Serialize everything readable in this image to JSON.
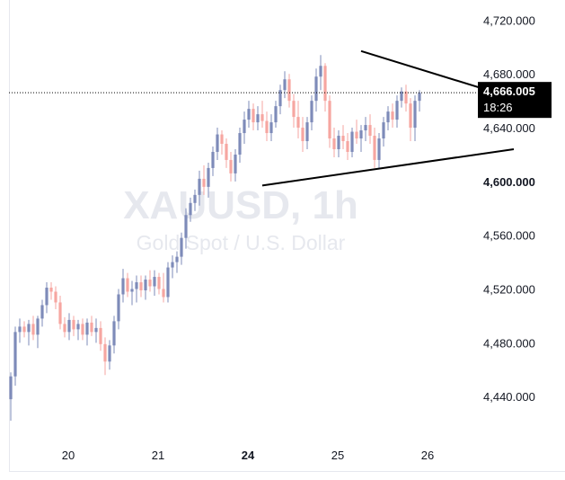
{
  "chart_data": {
    "type": "candlestick",
    "symbol_watermark": "XAUUSD, 1h",
    "description_watermark": "Gold Spot / U.S. Dollar",
    "ylim": [
      4410,
      4735
    ],
    "y_ticks": [
      "4,720.000",
      "4,680.000",
      "4,640.000",
      "4,600.000",
      "4,560.000",
      "4,520.000",
      "4,480.000",
      "4,440.000"
    ],
    "y_tick_values": [
      4720,
      4680,
      4640,
      4600,
      4560,
      4520,
      4480,
      4440
    ],
    "bold_y_tick": "4,600.000",
    "x_ticks": [
      "20",
      "21",
      "24",
      "25",
      "26"
    ],
    "x_tick_bar_index": [
      6,
      26,
      46,
      66,
      86
    ],
    "bold_x_tick": "24",
    "current_price": "4,666.005",
    "current_price_value": 4666.005,
    "countdown": "18:26",
    "colors": {
      "up": "#7e8bb9",
      "down": "#f6a6a1",
      "badge": "#000000",
      "trendline": "#000000",
      "priceline": "#000000"
    },
    "candles": [
      [
        4438,
        4458,
        4422,
        4455
      ],
      [
        4455,
        4492,
        4448,
        4488
      ],
      [
        4488,
        4498,
        4480,
        4492
      ],
      [
        4492,
        4496,
        4484,
        4488
      ],
      [
        4488,
        4497,
        4478,
        4494
      ],
      [
        4494,
        4500,
        4482,
        4486
      ],
      [
        4486,
        4500,
        4476,
        4498
      ],
      [
        4498,
        4512,
        4492,
        4508
      ],
      [
        4508,
        4525,
        4502,
        4521
      ],
      [
        4521,
        4525,
        4512,
        4518
      ],
      [
        4518,
        4522,
        4505,
        4510
      ],
      [
        4510,
        4515,
        4490,
        4494
      ],
      [
        4494,
        4499,
        4484,
        4488
      ],
      [
        4488,
        4502,
        4482,
        4497
      ],
      [
        4497,
        4500,
        4485,
        4490
      ],
      [
        4490,
        4497,
        4482,
        4494
      ],
      [
        4494,
        4498,
        4482,
        4486
      ],
      [
        4486,
        4498,
        4478,
        4495
      ],
      [
        4495,
        4500,
        4485,
        4488
      ],
      [
        4488,
        4498,
        4480,
        4491
      ],
      [
        4491,
        4496,
        4474,
        4479
      ],
      [
        4479,
        4484,
        4456,
        4466
      ],
      [
        4466,
        4482,
        4460,
        4478
      ],
      [
        4478,
        4500,
        4472,
        4496
      ],
      [
        4496,
        4520,
        4490,
        4516
      ],
      [
        4516,
        4535,
        4510,
        4528
      ],
      [
        4528,
        4532,
        4514,
        4518
      ],
      [
        4518,
        4526,
        4508,
        4520
      ],
      [
        4520,
        4530,
        4510,
        4525
      ],
      [
        4525,
        4530,
        4514,
        4519
      ],
      [
        4519,
        4530,
        4512,
        4527
      ],
      [
        4527,
        4534,
        4518,
        4522
      ],
      [
        4522,
        4534,
        4515,
        4529
      ],
      [
        4529,
        4532,
        4516,
        4520
      ],
      [
        4520,
        4532,
        4510,
        4514
      ],
      [
        4514,
        4540,
        4510,
        4536
      ],
      [
        4536,
        4545,
        4528,
        4540
      ],
      [
        4540,
        4548,
        4532,
        4544
      ],
      [
        4544,
        4562,
        4538,
        4558
      ],
      [
        4558,
        4580,
        4550,
        4575
      ],
      [
        4575,
        4588,
        4570,
        4584
      ],
      [
        4584,
        4594,
        4578,
        4590
      ],
      [
        4590,
        4608,
        4582,
        4602
      ],
      [
        4602,
        4612,
        4590,
        4596
      ],
      [
        4596,
        4614,
        4588,
        4610
      ],
      [
        4610,
        4626,
        4604,
        4622
      ],
      [
        4622,
        4640,
        4616,
        4635
      ],
      [
        4635,
        4638,
        4620,
        4628
      ],
      [
        4628,
        4632,
        4610,
        4616
      ],
      [
        4616,
        4622,
        4600,
        4606
      ],
      [
        4606,
        4624,
        4600,
        4620
      ],
      [
        4620,
        4640,
        4614,
        4636
      ],
      [
        4636,
        4652,
        4628,
        4646
      ],
      [
        4646,
        4660,
        4640,
        4654
      ],
      [
        4654,
        4658,
        4638,
        4644
      ],
      [
        4644,
        4656,
        4638,
        4650
      ],
      [
        4650,
        4660,
        4640,
        4645
      ],
      [
        4645,
        4652,
        4630,
        4636
      ],
      [
        4636,
        4650,
        4630,
        4644
      ],
      [
        4644,
        4660,
        4640,
        4656
      ],
      [
        4656,
        4672,
        4650,
        4668
      ],
      [
        4668,
        4682,
        4662,
        4676
      ],
      [
        4676,
        4680,
        4655,
        4660
      ],
      [
        4660,
        4665,
        4640,
        4648
      ],
      [
        4648,
        4660,
        4632,
        4640
      ],
      [
        4640,
        4648,
        4622,
        4630
      ],
      [
        4630,
        4648,
        4624,
        4644
      ],
      [
        4644,
        4664,
        4638,
        4660
      ],
      [
        4660,
        4684,
        4652,
        4678
      ],
      [
        4678,
        4694,
        4668,
        4686
      ],
      [
        4686,
        4688,
        4652,
        4660
      ],
      [
        4660,
        4664,
        4625,
        4632
      ],
      [
        4632,
        4640,
        4618,
        4624
      ],
      [
        4624,
        4638,
        4618,
        4634
      ],
      [
        4634,
        4642,
        4624,
        4630
      ],
      [
        4630,
        4636,
        4616,
        4622
      ],
      [
        4622,
        4640,
        4618,
        4637
      ],
      [
        4637,
        4646,
        4628,
        4632
      ],
      [
        4632,
        4642,
        4622,
        4638
      ],
      [
        4638,
        4648,
        4630,
        4642
      ],
      [
        4642,
        4650,
        4628,
        4634
      ],
      [
        4634,
        4640,
        4610,
        4616
      ],
      [
        4616,
        4636,
        4610,
        4632
      ],
      [
        4632,
        4648,
        4626,
        4644
      ],
      [
        4644,
        4656,
        4638,
        4652
      ],
      [
        4652,
        4658,
        4640,
        4646
      ],
      [
        4646,
        4664,
        4640,
        4660
      ],
      [
        4660,
        4670,
        4655,
        4667
      ],
      [
        4667,
        4672,
        4652,
        4658
      ],
      [
        4658,
        4662,
        4630,
        4640
      ],
      [
        4640,
        4664,
        4630,
        4660
      ],
      [
        4660,
        4668,
        4652,
        4666
      ]
    ],
    "trendlines": [
      {
        "from_bar": 78,
        "from_price": 4697,
        "to_bar": 112,
        "to_price": 4662
      },
      {
        "from_bar": 56,
        "from_price": 4597,
        "to_bar": 112,
        "to_price": 4624
      }
    ]
  }
}
